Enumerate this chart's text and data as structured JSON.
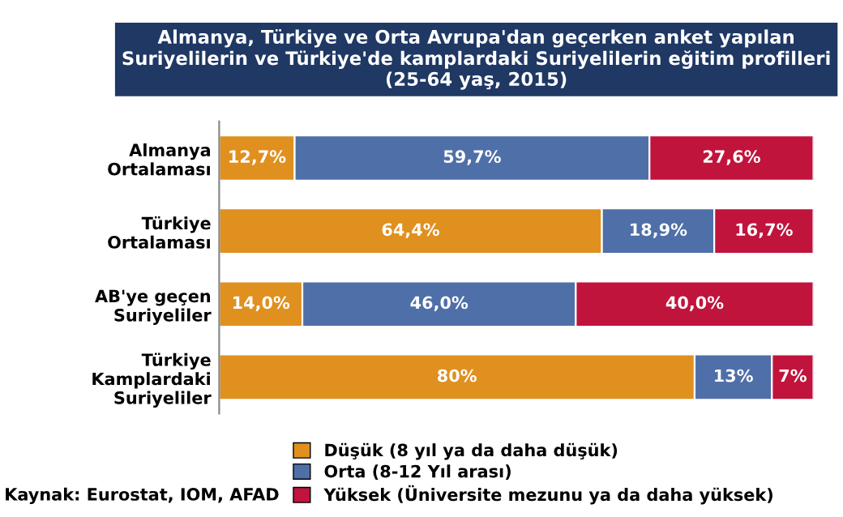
{
  "chart_data": {
    "type": "bar",
    "orientation": "horizontal",
    "stacked": true,
    "title": "Almanya, Türkiye ve Orta Avrupa'dan geçerken anket yapılan\nSuriyelilerin ve Türkiye'de kamplardaki Suriyelilerin eğitim profilleri\n(25-64 yaş, 2015)",
    "categories": [
      "Almanya\nOrtalaması",
      "Türkiye\nOrtalaması",
      "AB'ye geçen\nSuriyeliler",
      "Türkiye\nKamplardaki\nSuriyeliler"
    ],
    "series": [
      {
        "name": "Düşük (8 yıl ya da daha düşük)",
        "color": "#e0901f",
        "values": [
          12.7,
          64.4,
          14.0,
          80
        ],
        "value_labels": [
          "12,7%",
          "64,4%",
          "14,0%",
          "80%"
        ]
      },
      {
        "name": "Orta (8-12 Yıl arası)",
        "color": "#4f6fa8",
        "values": [
          59.7,
          18.9,
          46.0,
          13
        ],
        "value_labels": [
          "59,7%",
          "18,9%",
          "46,0%",
          "13%"
        ]
      },
      {
        "name": "Yüksek (Üniversite mezunu ya da daha yüksek)",
        "color": "#c0143c",
        "values": [
          27.6,
          16.7,
          40.0,
          7
        ],
        "value_labels": [
          "27,6%",
          "16,7%",
          "40,0%",
          "7%"
        ]
      }
    ],
    "tick_labels": "y",
    "grid": false,
    "legend": "bottom",
    "annotations": [
      "Kaynak: Eurostat, IOM, AFAD"
    ]
  }
}
